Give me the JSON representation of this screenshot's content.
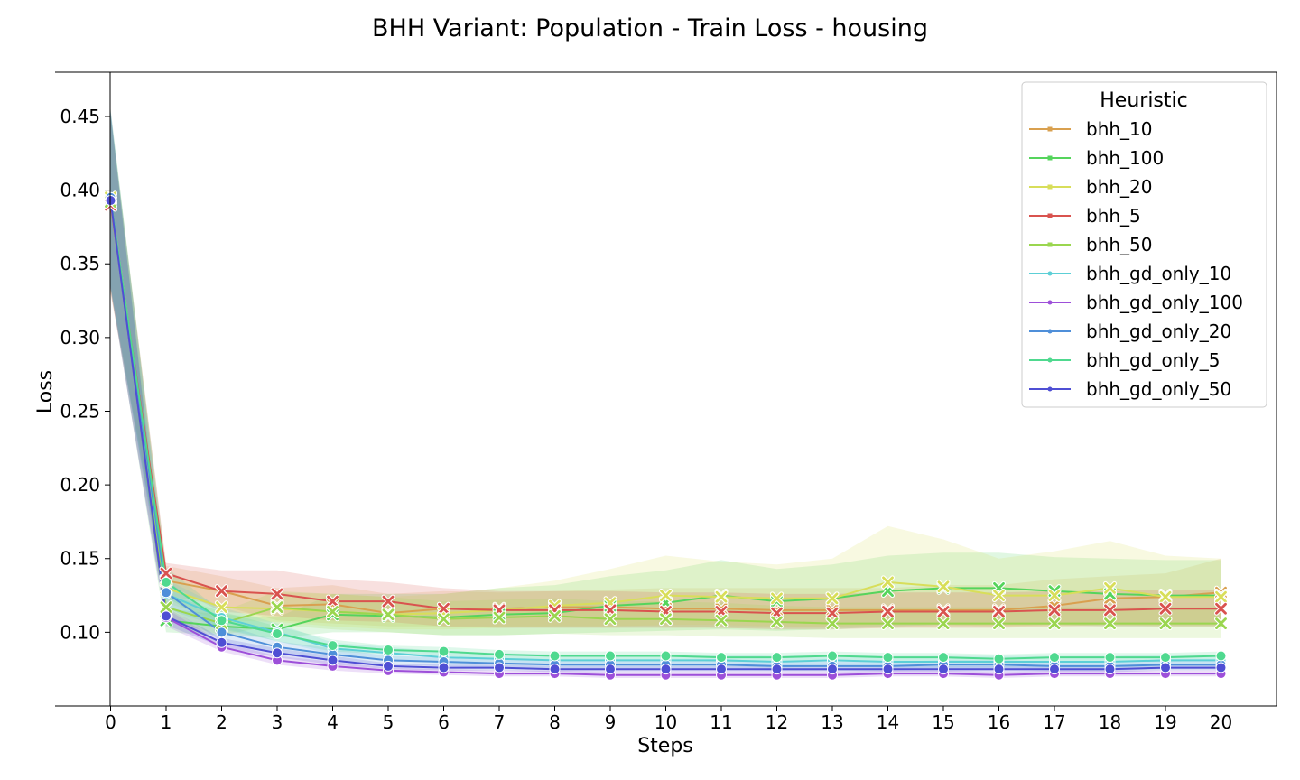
{
  "chart_data": {
    "type": "line",
    "title": "BHH Variant: Population - Train Loss - housing",
    "xlabel": "Steps",
    "ylabel": "Loss",
    "xlim": [
      -1,
      21
    ],
    "ylim": [
      0.05,
      0.48
    ],
    "xticks": [
      "0",
      "1",
      "2",
      "3",
      "4",
      "5",
      "6",
      "7",
      "8",
      "9",
      "10",
      "11",
      "12",
      "13",
      "14",
      "15",
      "16",
      "17",
      "18",
      "19",
      "20"
    ],
    "yticks": [
      "0.10",
      "0.15",
      "0.20",
      "0.25",
      "0.30",
      "0.35",
      "0.40",
      "0.45"
    ],
    "legend": {
      "title": "Heuristic",
      "placement": "top-right"
    },
    "x": [
      0,
      1,
      2,
      3,
      4,
      5,
      6,
      7,
      8,
      9,
      10,
      11,
      12,
      13,
      14,
      15,
      16,
      17,
      18,
      19,
      20
    ],
    "series": [
      {
        "name": "bhh_10",
        "color": "#d9a04f",
        "marker": "x",
        "values": [
          0.39,
          0.135,
          0.128,
          0.118,
          0.119,
          0.113,
          0.116,
          0.116,
          0.117,
          0.117,
          0.116,
          0.116,
          0.115,
          0.115,
          0.115,
          0.115,
          0.115,
          0.118,
          0.123,
          0.124,
          0.127
        ],
        "lower": [
          0.33,
          0.125,
          0.118,
          0.108,
          0.106,
          0.104,
          0.104,
          0.104,
          0.104,
          0.104,
          0.104,
          0.103,
          0.103,
          0.103,
          0.103,
          0.104,
          0.104,
          0.105,
          0.105,
          0.105,
          0.105
        ],
        "upper": [
          0.45,
          0.145,
          0.138,
          0.13,
          0.132,
          0.126,
          0.128,
          0.127,
          0.128,
          0.129,
          0.13,
          0.13,
          0.13,
          0.13,
          0.13,
          0.132,
          0.132,
          0.136,
          0.138,
          0.14,
          0.15
        ]
      },
      {
        "name": "bhh_100",
        "color": "#55d45c",
        "marker": "x",
        "values": [
          0.394,
          0.108,
          0.104,
          0.102,
          0.112,
          0.111,
          0.11,
          0.112,
          0.113,
          0.118,
          0.12,
          0.125,
          0.121,
          0.123,
          0.128,
          0.13,
          0.13,
          0.128,
          0.126,
          0.125,
          0.125
        ],
        "lower": [
          0.335,
          0.1,
          0.098,
          0.096,
          0.1,
          0.1,
          0.098,
          0.098,
          0.099,
          0.1,
          0.101,
          0.102,
          0.101,
          0.102,
          0.104,
          0.105,
          0.105,
          0.105,
          0.104,
          0.104,
          0.104
        ],
        "upper": [
          0.452,
          0.116,
          0.112,
          0.11,
          0.126,
          0.126,
          0.126,
          0.13,
          0.132,
          0.138,
          0.142,
          0.149,
          0.143,
          0.146,
          0.152,
          0.154,
          0.154,
          0.151,
          0.15,
          0.149,
          0.149
        ]
      },
      {
        "name": "bhh_20",
        "color": "#d8de5a",
        "marker": "x",
        "values": [
          0.395,
          0.13,
          0.117,
          0.116,
          0.114,
          0.112,
          0.113,
          0.115,
          0.118,
          0.12,
          0.125,
          0.124,
          0.123,
          0.123,
          0.134,
          0.131,
          0.125,
          0.125,
          0.13,
          0.124,
          0.124
        ],
        "lower": [
          0.335,
          0.12,
          0.108,
          0.107,
          0.104,
          0.102,
          0.102,
          0.103,
          0.104,
          0.104,
          0.105,
          0.105,
          0.104,
          0.104,
          0.105,
          0.105,
          0.104,
          0.104,
          0.105,
          0.104,
          0.104
        ],
        "upper": [
          0.455,
          0.14,
          0.128,
          0.127,
          0.126,
          0.124,
          0.126,
          0.13,
          0.135,
          0.143,
          0.152,
          0.148,
          0.146,
          0.15,
          0.172,
          0.163,
          0.15,
          0.155,
          0.162,
          0.152,
          0.15
        ]
      },
      {
        "name": "bhh_5",
        "color": "#d9534f",
        "marker": "x",
        "values": [
          0.39,
          0.14,
          0.128,
          0.126,
          0.121,
          0.121,
          0.116,
          0.115,
          0.115,
          0.115,
          0.114,
          0.114,
          0.113,
          0.113,
          0.114,
          0.114,
          0.114,
          0.115,
          0.115,
          0.116,
          0.116
        ],
        "lower": [
          0.33,
          0.133,
          0.114,
          0.111,
          0.108,
          0.107,
          0.104,
          0.103,
          0.103,
          0.103,
          0.103,
          0.103,
          0.102,
          0.102,
          0.103,
          0.103,
          0.103,
          0.104,
          0.104,
          0.104,
          0.104
        ],
        "upper": [
          0.45,
          0.147,
          0.142,
          0.142,
          0.136,
          0.134,
          0.13,
          0.128,
          0.128,
          0.128,
          0.127,
          0.127,
          0.126,
          0.126,
          0.127,
          0.127,
          0.127,
          0.128,
          0.128,
          0.129,
          0.129
        ]
      },
      {
        "name": "bhh_50",
        "color": "#9ad64f",
        "marker": "x",
        "values": [
          0.392,
          0.117,
          0.106,
          0.117,
          0.114,
          0.112,
          0.109,
          0.11,
          0.111,
          0.109,
          0.109,
          0.108,
          0.107,
          0.106,
          0.106,
          0.106,
          0.106,
          0.106,
          0.106,
          0.106,
          0.106
        ],
        "lower": [
          0.332,
          0.108,
          0.098,
          0.105,
          0.102,
          0.1,
          0.098,
          0.098,
          0.099,
          0.098,
          0.098,
          0.097,
          0.097,
          0.096,
          0.096,
          0.096,
          0.096,
          0.096,
          0.096,
          0.096,
          0.096
        ],
        "upper": [
          0.452,
          0.126,
          0.114,
          0.128,
          0.126,
          0.124,
          0.121,
          0.122,
          0.123,
          0.121,
          0.121,
          0.12,
          0.118,
          0.117,
          0.117,
          0.117,
          0.117,
          0.117,
          0.117,
          0.117,
          0.117
        ]
      },
      {
        "name": "bhh_gd_only_10",
        "color": "#5ccfd6",
        "marker": "o",
        "values": [
          0.394,
          0.126,
          0.11,
          0.1,
          0.089,
          0.086,
          0.083,
          0.082,
          0.081,
          0.081,
          0.081,
          0.081,
          0.08,
          0.081,
          0.08,
          0.08,
          0.08,
          0.08,
          0.08,
          0.081,
          0.081
        ],
        "lower": [
          0.334,
          0.116,
          0.103,
          0.094,
          0.085,
          0.082,
          0.079,
          0.078,
          0.077,
          0.077,
          0.077,
          0.077,
          0.076,
          0.077,
          0.076,
          0.076,
          0.076,
          0.076,
          0.076,
          0.077,
          0.077
        ],
        "upper": [
          0.454,
          0.136,
          0.117,
          0.106,
          0.093,
          0.09,
          0.087,
          0.086,
          0.085,
          0.085,
          0.085,
          0.085,
          0.084,
          0.085,
          0.084,
          0.084,
          0.084,
          0.084,
          0.084,
          0.085,
          0.085
        ]
      },
      {
        "name": "bhh_gd_only_100",
        "color": "#9d4fd9",
        "marker": "o",
        "values": [
          0.393,
          0.11,
          0.09,
          0.081,
          0.077,
          0.074,
          0.073,
          0.072,
          0.072,
          0.071,
          0.071,
          0.071,
          0.071,
          0.071,
          0.072,
          0.072,
          0.071,
          0.072,
          0.072,
          0.072,
          0.072
        ],
        "lower": [
          0.333,
          0.104,
          0.087,
          0.078,
          0.074,
          0.072,
          0.071,
          0.07,
          0.07,
          0.069,
          0.069,
          0.069,
          0.069,
          0.069,
          0.07,
          0.07,
          0.069,
          0.07,
          0.07,
          0.07,
          0.07
        ],
        "upper": [
          0.453,
          0.116,
          0.093,
          0.084,
          0.08,
          0.076,
          0.075,
          0.074,
          0.074,
          0.073,
          0.073,
          0.073,
          0.073,
          0.073,
          0.074,
          0.074,
          0.073,
          0.074,
          0.074,
          0.074,
          0.074
        ]
      },
      {
        "name": "bhh_gd_only_20",
        "color": "#4f8fd9",
        "marker": "o",
        "values": [
          0.395,
          0.127,
          0.1,
          0.09,
          0.085,
          0.081,
          0.08,
          0.079,
          0.078,
          0.078,
          0.078,
          0.078,
          0.077,
          0.077,
          0.077,
          0.078,
          0.078,
          0.077,
          0.077,
          0.078,
          0.078
        ],
        "lower": [
          0.335,
          0.118,
          0.094,
          0.086,
          0.081,
          0.078,
          0.077,
          0.076,
          0.075,
          0.075,
          0.075,
          0.075,
          0.074,
          0.074,
          0.074,
          0.075,
          0.075,
          0.074,
          0.074,
          0.075,
          0.075
        ],
        "upper": [
          0.455,
          0.136,
          0.106,
          0.094,
          0.089,
          0.084,
          0.083,
          0.082,
          0.081,
          0.081,
          0.081,
          0.081,
          0.08,
          0.08,
          0.08,
          0.081,
          0.081,
          0.08,
          0.08,
          0.081,
          0.081
        ]
      },
      {
        "name": "bhh_gd_only_5",
        "color": "#4fd98f",
        "marker": "o",
        "values": [
          0.393,
          0.134,
          0.108,
          0.099,
          0.091,
          0.088,
          0.087,
          0.085,
          0.084,
          0.084,
          0.084,
          0.083,
          0.083,
          0.084,
          0.083,
          0.083,
          0.082,
          0.083,
          0.083,
          0.083,
          0.084
        ],
        "lower": [
          0.333,
          0.124,
          0.102,
          0.094,
          0.087,
          0.085,
          0.084,
          0.082,
          0.081,
          0.081,
          0.081,
          0.08,
          0.08,
          0.081,
          0.08,
          0.08,
          0.079,
          0.08,
          0.08,
          0.08,
          0.081
        ],
        "upper": [
          0.453,
          0.144,
          0.114,
          0.104,
          0.095,
          0.091,
          0.09,
          0.088,
          0.087,
          0.087,
          0.087,
          0.086,
          0.086,
          0.087,
          0.086,
          0.086,
          0.085,
          0.086,
          0.086,
          0.086,
          0.087
        ]
      },
      {
        "name": "bhh_gd_only_50",
        "color": "#4f4fd4",
        "marker": "o",
        "values": [
          0.393,
          0.111,
          0.093,
          0.086,
          0.081,
          0.077,
          0.076,
          0.076,
          0.075,
          0.075,
          0.075,
          0.075,
          0.075,
          0.075,
          0.075,
          0.075,
          0.075,
          0.075,
          0.075,
          0.076,
          0.076
        ],
        "lower": [
          0.333,
          0.105,
          0.09,
          0.083,
          0.078,
          0.075,
          0.074,
          0.074,
          0.073,
          0.073,
          0.073,
          0.073,
          0.073,
          0.073,
          0.073,
          0.073,
          0.073,
          0.073,
          0.073,
          0.074,
          0.074
        ],
        "upper": [
          0.453,
          0.117,
          0.096,
          0.089,
          0.084,
          0.079,
          0.078,
          0.078,
          0.077,
          0.077,
          0.077,
          0.077,
          0.077,
          0.077,
          0.077,
          0.077,
          0.077,
          0.077,
          0.077,
          0.078,
          0.078
        ]
      }
    ]
  }
}
